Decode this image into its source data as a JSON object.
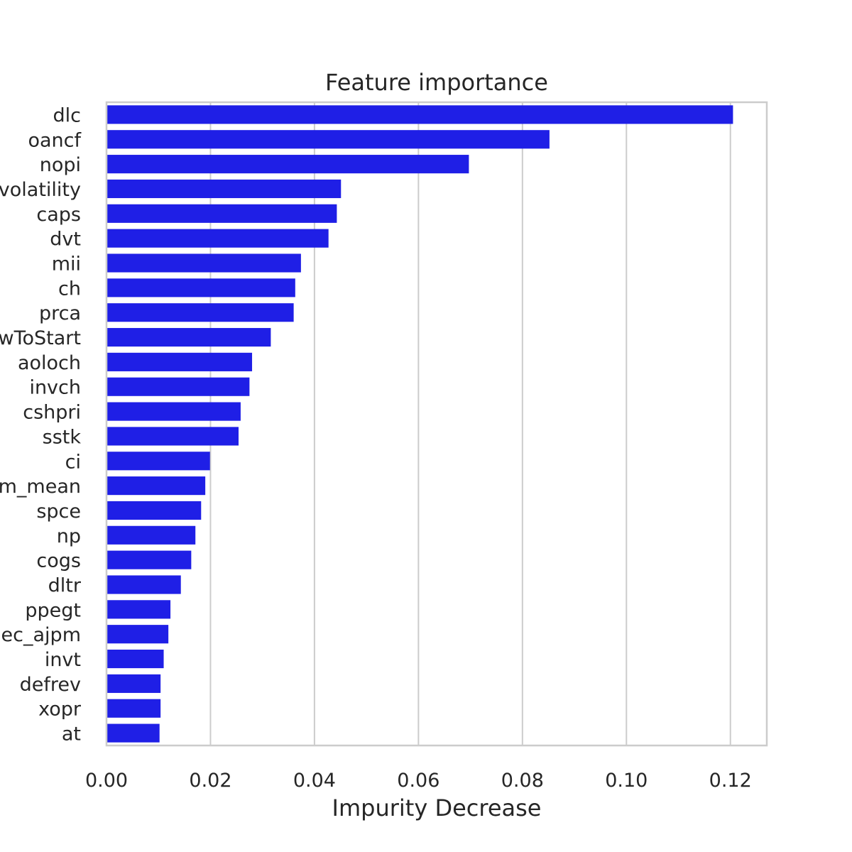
{
  "chart_data": {
    "type": "bar",
    "orientation": "horizontal",
    "title": "Feature importance",
    "xlabel": "Impurity Decrease",
    "ylabel": "",
    "xlim": [
      0,
      0.127
    ],
    "xticks": [
      0.0,
      0.02,
      0.04,
      0.06,
      0.08,
      0.1,
      0.12
    ],
    "xtick_labels": [
      "0.00",
      "0.02",
      "0.04",
      "0.06",
      "0.08",
      "0.10",
      "0.12"
    ],
    "grid": "vertical",
    "bar_color": "#1f1fe6",
    "categories": [
      "dlc",
      "oancf",
      "nopi",
      "_volatility",
      "caps",
      "dvt",
      "mii",
      "ch",
      "prca",
      "wToStart",
      "aoloch",
      "invch",
      "cshpri",
      "sstk",
      "ci",
      "m_mean",
      "spce",
      "np",
      "cogs",
      "dltr",
      "ppegt",
      "ec_ajpm",
      "invt",
      "defrev",
      "xopr",
      "at"
    ],
    "values": [
      0.1205,
      0.0852,
      0.0697,
      0.0451,
      0.0443,
      0.0427,
      0.0374,
      0.0363,
      0.036,
      0.0316,
      0.028,
      0.0275,
      0.0258,
      0.0254,
      0.0199,
      0.019,
      0.0182,
      0.0171,
      0.0163,
      0.0143,
      0.0123,
      0.0119,
      0.011,
      0.0104,
      0.0104,
      0.0102
    ]
  }
}
